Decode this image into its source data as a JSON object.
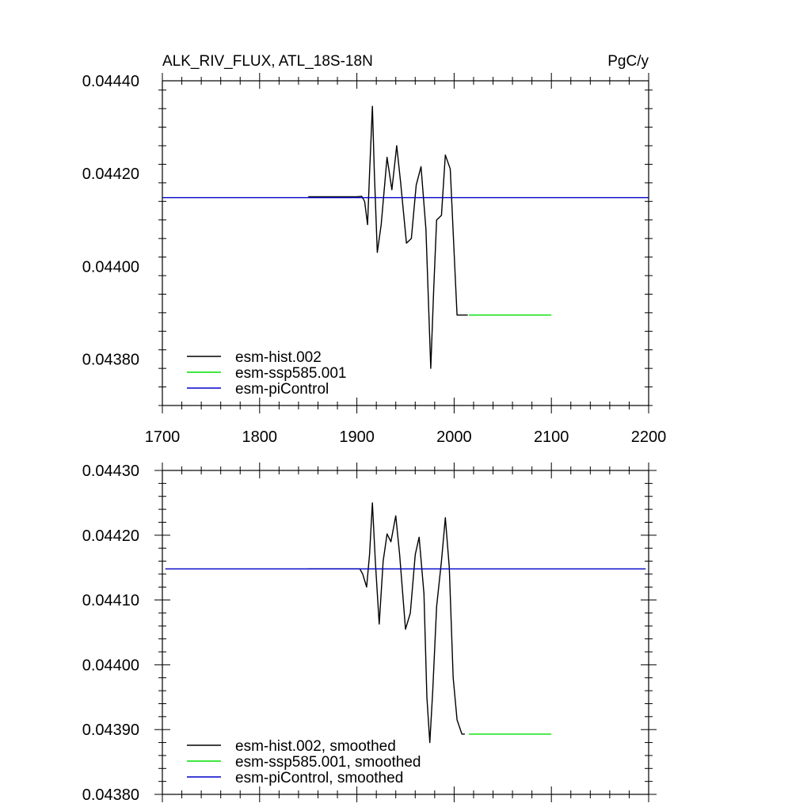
{
  "chart_data": [
    {
      "type": "line",
      "title": "ALK_RIV_FLUX, ATL_18S-18N",
      "units": "PgC/y",
      "xlim": [
        1700,
        2200
      ],
      "ylim": [
        0.0437,
        0.0444
      ],
      "x_ticks": [
        "1700",
        "1800",
        "1900",
        "2000",
        "2100",
        "2200"
      ],
      "y_ticks": [
        "0.04380",
        "0.04400",
        "0.04420",
        "0.04440"
      ],
      "legend_position": "bottom-left",
      "series": [
        {
          "name": "esm-hist.002",
          "color": "#000000",
          "points": [
            [
              1850,
              0.04415
            ],
            [
              1900,
              0.04415
            ],
            [
              1905,
              0.044151
            ],
            [
              1908,
              0.04414
            ],
            [
              1911,
              0.04409
            ],
            [
              1913,
              0.0442
            ],
            [
              1916,
              0.044345
            ],
            [
              1918,
              0.0442
            ],
            [
              1921,
              0.04403
            ],
            [
              1925,
              0.04409
            ],
            [
              1931,
              0.044235
            ],
            [
              1936,
              0.044165
            ],
            [
              1941,
              0.04426
            ],
            [
              1945,
              0.04418
            ],
            [
              1951,
              0.04405
            ],
            [
              1956,
              0.04406
            ],
            [
              1961,
              0.044175
            ],
            [
              1966,
              0.044215
            ],
            [
              1971,
              0.04408
            ],
            [
              1976,
              0.04378
            ],
            [
              1979,
              0.04395
            ],
            [
              1982,
              0.0441
            ],
            [
              1987,
              0.04411
            ],
            [
              1991,
              0.04424
            ],
            [
              1996,
              0.04421
            ],
            [
              2001,
              0.043985
            ],
            [
              2003,
              0.043895
            ],
            [
              2014,
              0.043895
            ]
          ]
        },
        {
          "name": "esm-ssp585.001",
          "color": "#00e000",
          "points": [
            [
              2015,
              0.043895
            ],
            [
              2100,
              0.043895
            ]
          ]
        },
        {
          "name": "esm-piControl",
          "color": "#0000c8",
          "points": [
            [
              1700,
              0.044148
            ],
            [
              2200,
              0.044148
            ]
          ]
        }
      ]
    },
    {
      "type": "line",
      "title": "",
      "xlim": [
        1700,
        2200
      ],
      "ylim": [
        0.0438,
        0.0443
      ],
      "y_ticks": [
        "0.04380",
        "0.04390",
        "0.04400",
        "0.04410",
        "0.04420",
        "0.04430"
      ],
      "legend_position": "bottom-left",
      "series": [
        {
          "name": "esm-hist.002, smoothed",
          "color": "#000000",
          "points": [
            [
              1850,
              0.044148
            ],
            [
              1903,
              0.044148
            ],
            [
              1906,
              0.04414
            ],
            [
              1910,
              0.04412
            ],
            [
              1913,
              0.04417
            ],
            [
              1916,
              0.04425
            ],
            [
              1919,
              0.04416
            ],
            [
              1923,
              0.044063
            ],
            [
              1927,
              0.04416
            ],
            [
              1931,
              0.044202
            ],
            [
              1935,
              0.04419
            ],
            [
              1940,
              0.04423
            ],
            [
              1944,
              0.04417
            ],
            [
              1950,
              0.044055
            ],
            [
              1955,
              0.04408
            ],
            [
              1960,
              0.04417
            ],
            [
              1964,
              0.044197
            ],
            [
              1969,
              0.04411
            ],
            [
              1972,
              0.04395
            ],
            [
              1975,
              0.04388
            ],
            [
              1978,
              0.04396
            ],
            [
              1982,
              0.04409
            ],
            [
              1987,
              0.04416
            ],
            [
              1991,
              0.044227
            ],
            [
              1995,
              0.04415
            ],
            [
              1999,
              0.04398
            ],
            [
              2003,
              0.043915
            ],
            [
              2008,
              0.043893
            ],
            [
              2011,
              0.043893
            ]
          ]
        },
        {
          "name": "esm-ssp585.001, smoothed",
          "color": "#00e000",
          "points": [
            [
              2015,
              0.043893
            ],
            [
              2100,
              0.043893
            ]
          ]
        },
        {
          "name": "esm-piControl, smoothed",
          "color": "#0000c8",
          "points": [
            [
              1703,
              0.044148
            ],
            [
              2197,
              0.044148
            ]
          ]
        }
      ]
    }
  ]
}
